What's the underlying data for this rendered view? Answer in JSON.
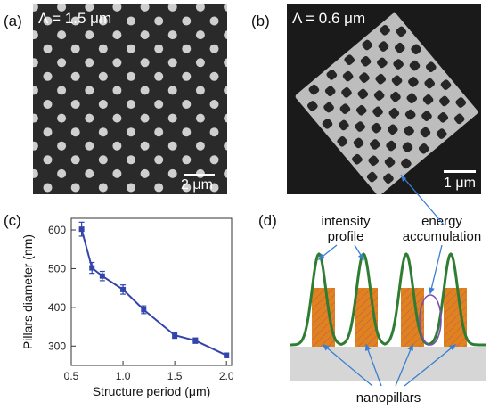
{
  "panels": {
    "a": {
      "label": "(a)",
      "title": "Λ = 1.5  μm",
      "scale_label": "2 μm"
    },
    "b": {
      "label": "(b)",
      "title": "Λ = 0.6  μm",
      "scale_label": "1 μm"
    },
    "c": {
      "label": "(c)"
    },
    "d": {
      "label": "(d)",
      "annotations": {
        "intensity_profile_line1": "intensity",
        "intensity_profile_line2": "profile",
        "energy_line1": "energy",
        "energy_line2": "accumulation",
        "nanopillars": "nanopillars"
      },
      "colors": {
        "gaussian": "#2e7d32",
        "pillar": "#e8801a",
        "pillar_hatch": "#8a4a9e",
        "substrate": "#d6d6d6",
        "arrow": "#3a7fd0",
        "ellipse": "#7b4fb0"
      }
    }
  },
  "chart_data": {
    "type": "line",
    "xlabel": "Structure period (μm)",
    "ylabel": "Pillars diameter (nm)",
    "xlim": [
      0.5,
      2.05
    ],
    "ylim": [
      250,
      630
    ],
    "xticks": [
      0.5,
      1.0,
      1.5,
      2.0
    ],
    "xtick_labels": [
      "0.5",
      "1.0",
      "1.5",
      "2.0"
    ],
    "yticks": [
      300,
      400,
      500,
      600
    ],
    "ytick_labels": [
      "300",
      "400",
      "500",
      "600"
    ],
    "series": [
      {
        "color": "#3344aa",
        "x": [
          0.6,
          0.7,
          0.8,
          1.0,
          1.2,
          1.5,
          1.7,
          2.0
        ],
        "y": [
          602,
          502,
          481,
          446,
          394,
          328,
          314,
          276
        ],
        "err": [
          18,
          14,
          12,
          12,
          10,
          8,
          7,
          6
        ]
      }
    ]
  }
}
